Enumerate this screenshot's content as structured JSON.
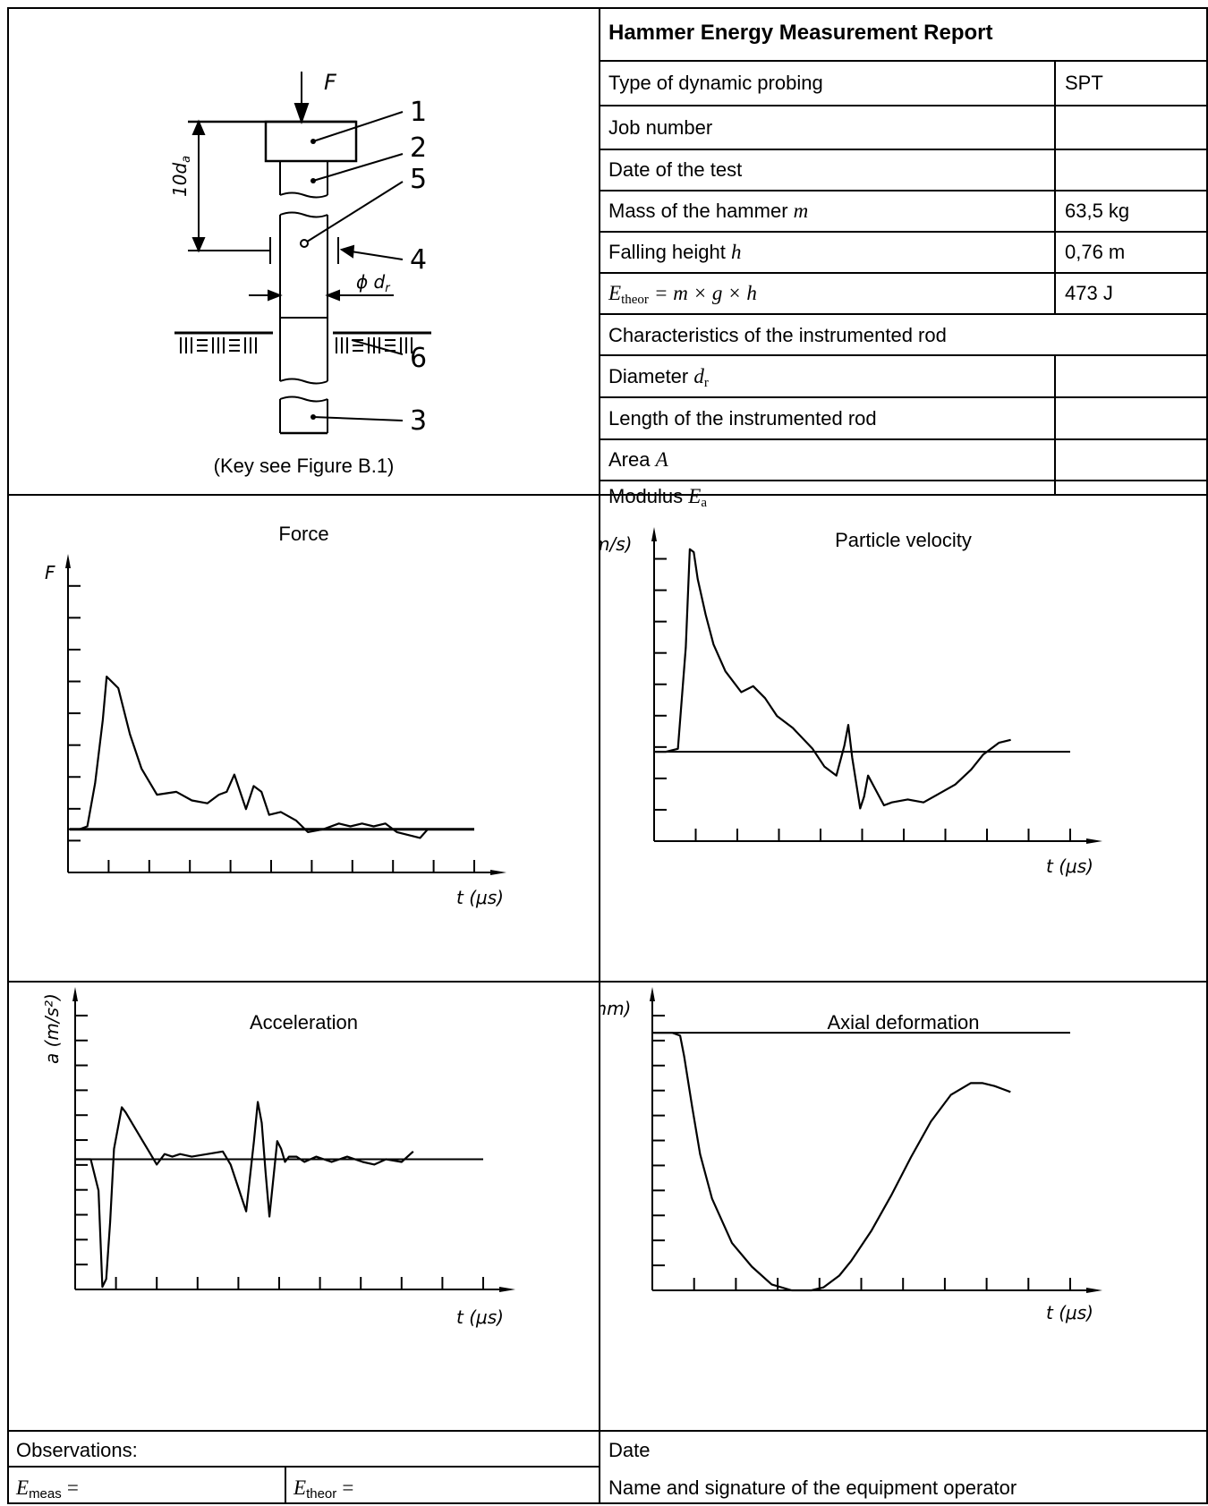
{
  "report": {
    "title": "Hammer Energy Measurement Report",
    "rows": [
      {
        "label": "Type of dynamic probing",
        "value": "SPT"
      },
      {
        "label": "Job number",
        "value": ""
      },
      {
        "label": "Date of the test",
        "value": ""
      },
      {
        "label": "Mass of the hammer",
        "symbol": "m",
        "value": "63,5 kg"
      },
      {
        "label": "Falling height",
        "symbol": "h",
        "value": "0,76 m"
      },
      {
        "label": "E",
        "sub": "theor",
        "formula": "= m × g × h",
        "value": "473 J"
      }
    ],
    "rod_header": "Characteristics of the instrumented rod",
    "rod_rows": [
      {
        "label": "Diameter",
        "symbol": "d",
        "sub": "r",
        "value": ""
      },
      {
        "label": "Length of the instrumented rod",
        "value": ""
      },
      {
        "label": "Area",
        "symbol": "A",
        "value": ""
      },
      {
        "label": "Modulus",
        "symbol": "E",
        "sub": "a",
        "value": ""
      }
    ]
  },
  "figure": {
    "caption": "(Key see Figure B.1)",
    "force_label": "F",
    "dim_label": "10d",
    "dim_sub": "a",
    "dia_label": "ϕ d",
    "dia_sub": "r",
    "keys": [
      "1",
      "2",
      "5",
      "4",
      "6",
      "3"
    ],
    "icons": [
      "hatched-ground-icon",
      "force-arrow-icon"
    ]
  },
  "footer": {
    "observations": "Observations:",
    "e_meas_symbol": "E",
    "e_meas_sub": "meas",
    "e_meas_eq": "=",
    "e_theor_symbol": "E",
    "e_theor_sub": "theor",
    "e_theor_eq": "=",
    "date_label": "Date",
    "signature_label": "Name and signature of the equipment operator"
  },
  "chart_data": [
    {
      "type": "line",
      "title": "Force",
      "ylabel": "F",
      "xlabel": "t (μs)",
      "x": [
        0,
        0.3,
        0.5,
        0.7,
        0.9,
        1.0,
        1.3,
        1.6,
        1.9,
        2.3,
        2.8,
        3.2,
        3.6,
        3.9,
        4.1,
        4.3,
        4.6,
        4.8,
        5.0,
        5.2,
        5.5,
        5.9,
        6.2,
        6.6,
        7.0,
        7.3,
        7.6,
        7.9,
        8.2,
        8.5,
        8.8,
        9.1,
        9.3
      ],
      "series": [
        {
          "values": [
            0,
            0,
            0.1,
            1.6,
            3.8,
            5.3,
            4.9,
            3.3,
            2.1,
            1.2,
            1.3,
            1.0,
            0.9,
            1.2,
            1.3,
            1.9,
            0.7,
            1.5,
            1.3,
            0.5,
            0.6,
            0.3,
            -0.1,
            0,
            0.2,
            0.1,
            0.2,
            0.1,
            0.2,
            -0.1,
            -0.2,
            -0.3,
            0
          ]
        }
      ],
      "baseline": 0,
      "ylim": [
        -1.5,
        9
      ],
      "xlim": [
        0,
        10.5
      ],
      "x_ticks": 10,
      "y_ticks": 9
    },
    {
      "type": "line",
      "title": "Particle velocity",
      "ylabel": "v (m/s)",
      "xlabel": "t (μs)",
      "x": [
        0,
        0.3,
        0.6,
        0.8,
        0.9,
        1.0,
        1.1,
        1.3,
        1.5,
        1.8,
        2.2,
        2.5,
        2.8,
        3.1,
        3.5,
        4.0,
        4.3,
        4.6,
        4.8,
        4.9,
        5.0,
        5.2,
        5.3,
        5.4,
        5.6,
        5.8,
        6.0,
        6.4,
        6.8,
        7.2,
        7.6,
        8.0,
        8.3,
        8.7,
        9.0
      ],
      "series": [
        {
          "values": [
            0,
            0,
            0.1,
            3.5,
            6.8,
            6.7,
            5.8,
            4.6,
            3.6,
            2.7,
            2.0,
            2.2,
            1.8,
            1.2,
            0.8,
            0.1,
            -0.5,
            -0.8,
            0.2,
            0.9,
            -0.2,
            -1.9,
            -1.5,
            -0.8,
            -1.3,
            -1.8,
            -1.7,
            -1.6,
            -1.7,
            -1.4,
            -1.1,
            -0.6,
            -0.1,
            0.3,
            0.4
          ]
        }
      ],
      "baseline": 0,
      "ylim": [
        -3,
        7
      ],
      "xlim": [
        0,
        10.5
      ],
      "x_ticks": 10,
      "y_ticks": 9
    },
    {
      "type": "line",
      "title": "Acceleration",
      "ylabel": "a (m/s²)",
      "xlabel": "t (μs)",
      "x": [
        0,
        0.4,
        0.6,
        0.7,
        0.8,
        0.9,
        1.0,
        1.2,
        1.3,
        1.5,
        1.7,
        1.9,
        2.1,
        2.3,
        2.5,
        2.7,
        3.0,
        3.4,
        3.8,
        4.0,
        4.2,
        4.4,
        4.6,
        4.7,
        4.8,
        4.9,
        5.0,
        5.2,
        5.3,
        5.4,
        5.5,
        5.7,
        5.9,
        6.2,
        6.6,
        7.0,
        7.4,
        7.7,
        8.0,
        8.4,
        8.7
      ],
      "series": [
        {
          "values": [
            0,
            0,
            -1.2,
            -4.9,
            -4.6,
            -2.4,
            0.4,
            2.0,
            1.8,
            1.3,
            0.8,
            0.3,
            -0.2,
            0.2,
            0.1,
            0.2,
            0.1,
            0.2,
            0.3,
            -0.2,
            -1.1,
            -2.0,
            0.7,
            2.2,
            1.4,
            -0.5,
            -2.2,
            0.7,
            0.4,
            -0.1,
            0.1,
            0.1,
            -0.1,
            0.1,
            -0.1,
            0.1,
            -0.1,
            -0.2,
            0,
            -0.1,
            0.3
          ]
        }
      ],
      "baseline": 0,
      "ylim": [
        -5,
        6
      ],
      "xlim": [
        0,
        10.5
      ],
      "x_ticks": 10,
      "y_ticks": 11
    },
    {
      "type": "line",
      "title": "Axial deformation",
      "ylabel": "s (mm)",
      "xlabel": "t (μs)",
      "x": [
        0,
        0.5,
        0.7,
        0.8,
        1.0,
        1.2,
        1.5,
        2.0,
        2.5,
        3.0,
        3.5,
        4.0,
        4.3,
        4.5,
        4.7,
        5.0,
        5.5,
        6.0,
        6.5,
        7.0,
        7.5,
        8.0,
        8.3,
        8.6,
        8.8,
        9.0
      ],
      "series": [
        {
          "values": [
            0,
            0,
            -0.1,
            -0.8,
            -2.5,
            -4.1,
            -5.6,
            -7.1,
            -7.9,
            -8.5,
            -8.7,
            -8.7,
            -8.6,
            -8.4,
            -8.2,
            -7.7,
            -6.7,
            -5.5,
            -4.2,
            -3.0,
            -2.1,
            -1.7,
            -1.7,
            -1.8,
            -1.9,
            -2.0
          ]
        }
      ],
      "baseline": 0,
      "ylim": [
        -8.7,
        1
      ],
      "xlim": [
        0,
        10.5
      ],
      "x_ticks": 10,
      "y_ticks": 11
    }
  ]
}
